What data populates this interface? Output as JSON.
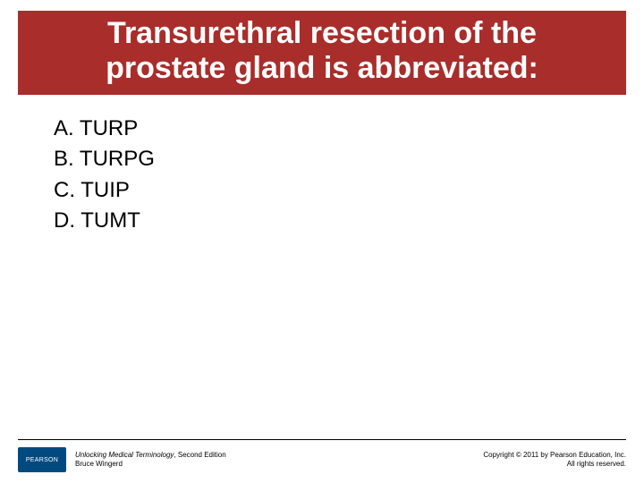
{
  "title": {
    "line1": "Transurethral resection of the",
    "line2": "prostate gland is abbreviated:",
    "bg_color": "#a92d2a",
    "text_color": "#ffffff",
    "fontsize": 34
  },
  "options": [
    {
      "label": "A. TURP"
    },
    {
      "label": "B. TURPG"
    },
    {
      "label": "C. TUIP"
    },
    {
      "label": "D. TUMT"
    }
  ],
  "options_style": {
    "fontsize": 24,
    "color": "#000000",
    "line_height": 1.35
  },
  "footer": {
    "rule_color": "#000000",
    "logo_bg": "#004a80",
    "logo_text": "PEARSON",
    "logo_text_color": "#ffffff",
    "book_title": "Unlocking Medical Terminology",
    "book_edition": ", Second Edition",
    "author": "Bruce Wingerd",
    "text_color": "#000000",
    "fontsize": 8,
    "copyright_line1": "Copyright © 2011 by Pearson Education, Inc.",
    "copyright_line2": "All rights reserved."
  }
}
